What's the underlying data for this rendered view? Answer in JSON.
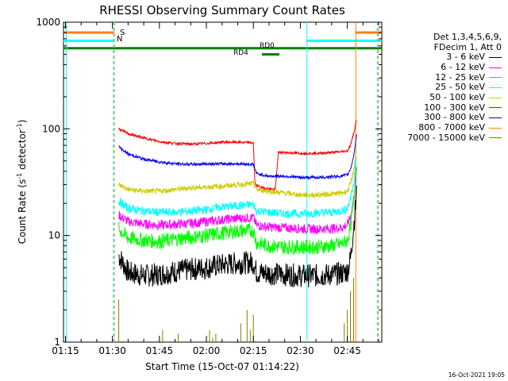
{
  "title": "RHESSI Observing Summary Count Rates",
  "footer_stamp": "16-Oct-2021 19:05",
  "chart_data": {
    "type": "line",
    "title": "RHESSI Observing Summary Count Rates",
    "xlabel": "Start Time (15-Oct-07 01:14:22)",
    "ylabel_main": "Count Rate (s",
    "ylabel_sup1": "-1",
    "ylabel_mid": " detector",
    "ylabel_sup2": "-1",
    "ylabel_end": ")",
    "x_tick_labels": [
      "01:15",
      "01:30",
      "01:45",
      "02:00",
      "02:15",
      "02:30",
      "02:45"
    ],
    "x_tick_minutes": [
      15,
      30,
      45,
      60,
      75,
      90,
      105
    ],
    "xlim_minutes": [
      14.37,
      116
    ],
    "y_scale": "log",
    "ylim": [
      1,
      1000
    ],
    "y_tick_labels": [
      "1",
      "10",
      "100",
      "1000"
    ],
    "y_tick_values": [
      1,
      10,
      100,
      1000
    ],
    "legend_header": [
      "Det 1,3,4,5,6,9,",
      "FDecim 1, Att 0"
    ],
    "flag_labels": {
      "S": "S",
      "N": "N",
      "RD0": "RD0",
      "RD4": "RD4"
    },
    "flags": [
      {
        "label": "S",
        "color": "#ff8000",
        "level": 800,
        "x_start": 14.37,
        "x_end": 30.5
      },
      {
        "label": "N",
        "color": "#00ffff",
        "level": 670,
        "x_start": 14.37,
        "x_end": 30.5
      },
      {
        "label": "S",
        "color": "#ff8000",
        "level": 800,
        "x_start": 107.5,
        "x_end": 116
      },
      {
        "label": "N",
        "color": "#00ffff",
        "level": 670,
        "x_start": 92,
        "x_end": 116
      },
      {
        "label": "RD0",
        "color": "#008000",
        "level": 570,
        "x_start": 14.37,
        "x_end": 116
      },
      {
        "label": "RD4",
        "color": "#008000",
        "level": 500,
        "x_start": 77.7,
        "x_end": 83.3
      }
    ],
    "night_lines": [
      {
        "color": "#00ffff",
        "x": 15.3,
        "style": "solid"
      },
      {
        "color": "#00ffff",
        "x": 30.3,
        "style": "dashed"
      },
      {
        "color": "#ff8000",
        "x": 30.6,
        "style": "dashed"
      },
      {
        "color": "#00ffff",
        "x": 92.1,
        "style": "solid"
      },
      {
        "color": "#ff8000",
        "x": 107.7,
        "style": "solid"
      },
      {
        "color": "#00ffff",
        "x": 114.6,
        "style": "dashed"
      },
      {
        "color": "#ff8000",
        "x": 114.9,
        "style": "dashed"
      }
    ],
    "series": [
      {
        "name": "3 - 6 keV",
        "color": "#000000",
        "x": [
          32,
          35,
          40,
          45,
          50,
          55,
          60,
          65,
          70,
          75,
          76,
          80,
          85,
          90,
          95,
          100,
          103,
          105,
          106,
          107,
          108
        ],
        "y": [
          6.5,
          4.5,
          4.2,
          4.3,
          4.6,
          4.8,
          5.0,
          5.3,
          5.5,
          5.6,
          4.5,
          4.4,
          4.3,
          4.2,
          4.2,
          4.3,
          4.4,
          4.6,
          6,
          12,
          25
        ]
      },
      {
        "name": "6 - 12 keV",
        "color": "#ff00ff",
        "x": [
          32,
          35,
          40,
          45,
          50,
          55,
          60,
          65,
          70,
          75,
          76,
          80,
          85,
          90,
          95,
          100,
          103,
          105,
          106,
          107,
          108
        ],
        "y": [
          15.5,
          13.5,
          12.8,
          12.5,
          12.7,
          13,
          13.5,
          14,
          14.5,
          14.7,
          12.5,
          12,
          11.8,
          11.6,
          11.5,
          11.6,
          11.8,
          12.5,
          15,
          22,
          45
        ]
      },
      {
        "name": "12 - 25 keV",
        "color": "#00ff00",
        "x": [
          32,
          35,
          40,
          45,
          50,
          55,
          60,
          65,
          70,
          75,
          76,
          80,
          85,
          90,
          95,
          100,
          103,
          105,
          106,
          107,
          108
        ],
        "y": [
          11.5,
          9.5,
          9.0,
          8.8,
          9.2,
          9.6,
          10,
          10.5,
          11,
          11.2,
          8.5,
          8.0,
          7.8,
          7.8,
          7.8,
          8.0,
          8.3,
          9.0,
          12,
          20,
          45
        ]
      },
      {
        "name": "25 - 50 keV",
        "color": "#00ffff",
        "x": [
          32,
          35,
          40,
          45,
          50,
          55,
          60,
          65,
          70,
          75,
          76,
          80,
          85,
          90,
          95,
          100,
          103,
          105,
          106,
          107,
          108
        ],
        "y": [
          21,
          18,
          17,
          16.5,
          16.5,
          17,
          17.5,
          18.5,
          19,
          19.5,
          17,
          16.5,
          16,
          16,
          16.3,
          16.5,
          17,
          18,
          22,
          32,
          55
        ]
      },
      {
        "name": "50 - 100 keV",
        "color": "#cccc00",
        "x": [
          32,
          35,
          40,
          45,
          50,
          55,
          60,
          65,
          70,
          75,
          76,
          80,
          85,
          90,
          95,
          100,
          103,
          105,
          106,
          107,
          108
        ],
        "y": [
          30,
          27,
          26,
          26,
          27,
          28,
          28.5,
          29,
          30,
          30.5,
          27,
          26,
          25,
          24,
          24,
          24.5,
          25,
          26,
          30,
          40,
          65
        ]
      },
      {
        "name": "100 - 300 keV",
        "color": "#ff0000",
        "x": [
          32,
          35,
          40,
          45,
          50,
          55,
          60,
          65,
          70,
          75,
          75.5,
          78,
          82,
          83,
          85,
          90,
          95,
          100,
          103,
          105,
          106,
          107,
          108
        ],
        "y": [
          100,
          90,
          82,
          76,
          73,
          72,
          73,
          75,
          75,
          74,
          30,
          28,
          27,
          60,
          60,
          59,
          59,
          60,
          61,
          62,
          70,
          90,
          125
        ]
      },
      {
        "name": "300 - 800 keV",
        "color": "#0000ff",
        "x": [
          32,
          35,
          40,
          45,
          50,
          55,
          60,
          65,
          70,
          75,
          76,
          80,
          85,
          90,
          95,
          100,
          103,
          105,
          106,
          107,
          108
        ],
        "y": [
          68,
          58,
          52,
          49,
          47,
          46.5,
          47,
          47,
          47,
          46.5,
          38,
          36,
          36,
          35,
          35,
          35.5,
          36,
          37,
          42,
          55,
          90
        ]
      },
      {
        "name": "800 - 7000 keV",
        "color": "#ff8000",
        "x": [],
        "y": []
      },
      {
        "name": "7000 - 15000 keV",
        "color": "#808000",
        "x": [
          32,
          32.5,
          33,
          45,
          46,
          50,
          51,
          60,
          61,
          62,
          63,
          64,
          70,
          71,
          73,
          74,
          75,
          76,
          90,
          95,
          100,
          104,
          105,
          106,
          107
        ],
        "y": [
          2.5,
          1,
          1,
          1,
          1.3,
          1,
          1.2,
          1,
          1.3,
          1.1,
          1.2,
          1,
          1,
          1.5,
          2,
          1.3,
          1.8,
          1,
          1,
          1,
          1,
          1.5,
          2,
          3.0,
          4.0
        ]
      }
    ],
    "grid": false,
    "legend_placement": "right"
  }
}
